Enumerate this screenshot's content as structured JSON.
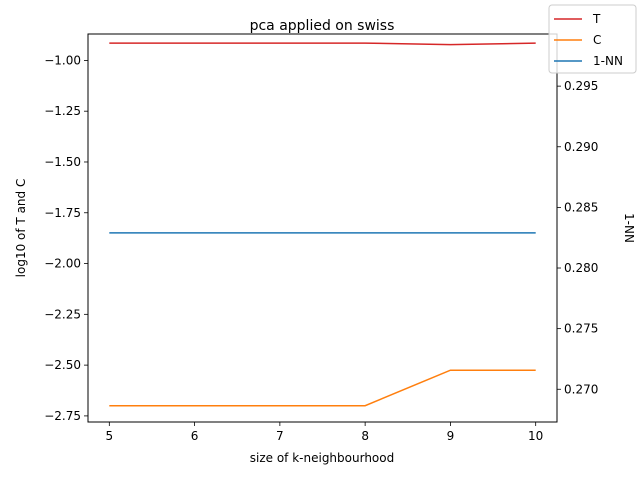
{
  "chart_data": {
    "type": "line",
    "title": "pca applied on swiss",
    "xlabel": "size of k-neighbourhood",
    "ylabel_left": "log10 of T and C",
    "ylabel_right": "1-NN",
    "x": [
      5,
      6,
      7,
      8,
      9,
      10
    ],
    "xlim": [
      4.75,
      10.25
    ],
    "ylim_left": [
      -2.78,
      -0.87
    ],
    "ylim_right": [
      0.2673,
      0.2993
    ],
    "x_ticks": [
      5,
      6,
      7,
      8,
      9,
      10
    ],
    "y_ticks_left": [
      -1.0,
      -1.25,
      -1.5,
      -1.75,
      -2.0,
      -2.25,
      -2.5,
      -2.75
    ],
    "y_ticks_left_labels": [
      "−1.00",
      "−1.25",
      "−1.50",
      "−1.75",
      "−2.00",
      "−2.25",
      "−2.50",
      "−2.75"
    ],
    "y_ticks_right": [
      0.27,
      0.275,
      0.28,
      0.285,
      0.29,
      0.295
    ],
    "y_ticks_right_labels": [
      "0.270",
      "0.275",
      "0.280",
      "0.285",
      "0.290",
      "0.295"
    ],
    "grid": false,
    "legend_position": "top-right",
    "series": [
      {
        "name": "T",
        "axis": "left",
        "color": "#d62728",
        "values": [
          -0.915,
          -0.915,
          -0.915,
          -0.915,
          -0.922,
          -0.915
        ]
      },
      {
        "name": "C",
        "axis": "left",
        "color": "#ff7f0e",
        "values": [
          -2.7,
          -2.7,
          -2.7,
          -2.7,
          -2.525,
          -2.525
        ]
      },
      {
        "name": "1-NN",
        "axis": "right",
        "color": "#1f77b4",
        "values": [
          0.2829,
          0.2829,
          0.2829,
          0.2829,
          0.2829,
          0.2829
        ]
      }
    ]
  }
}
